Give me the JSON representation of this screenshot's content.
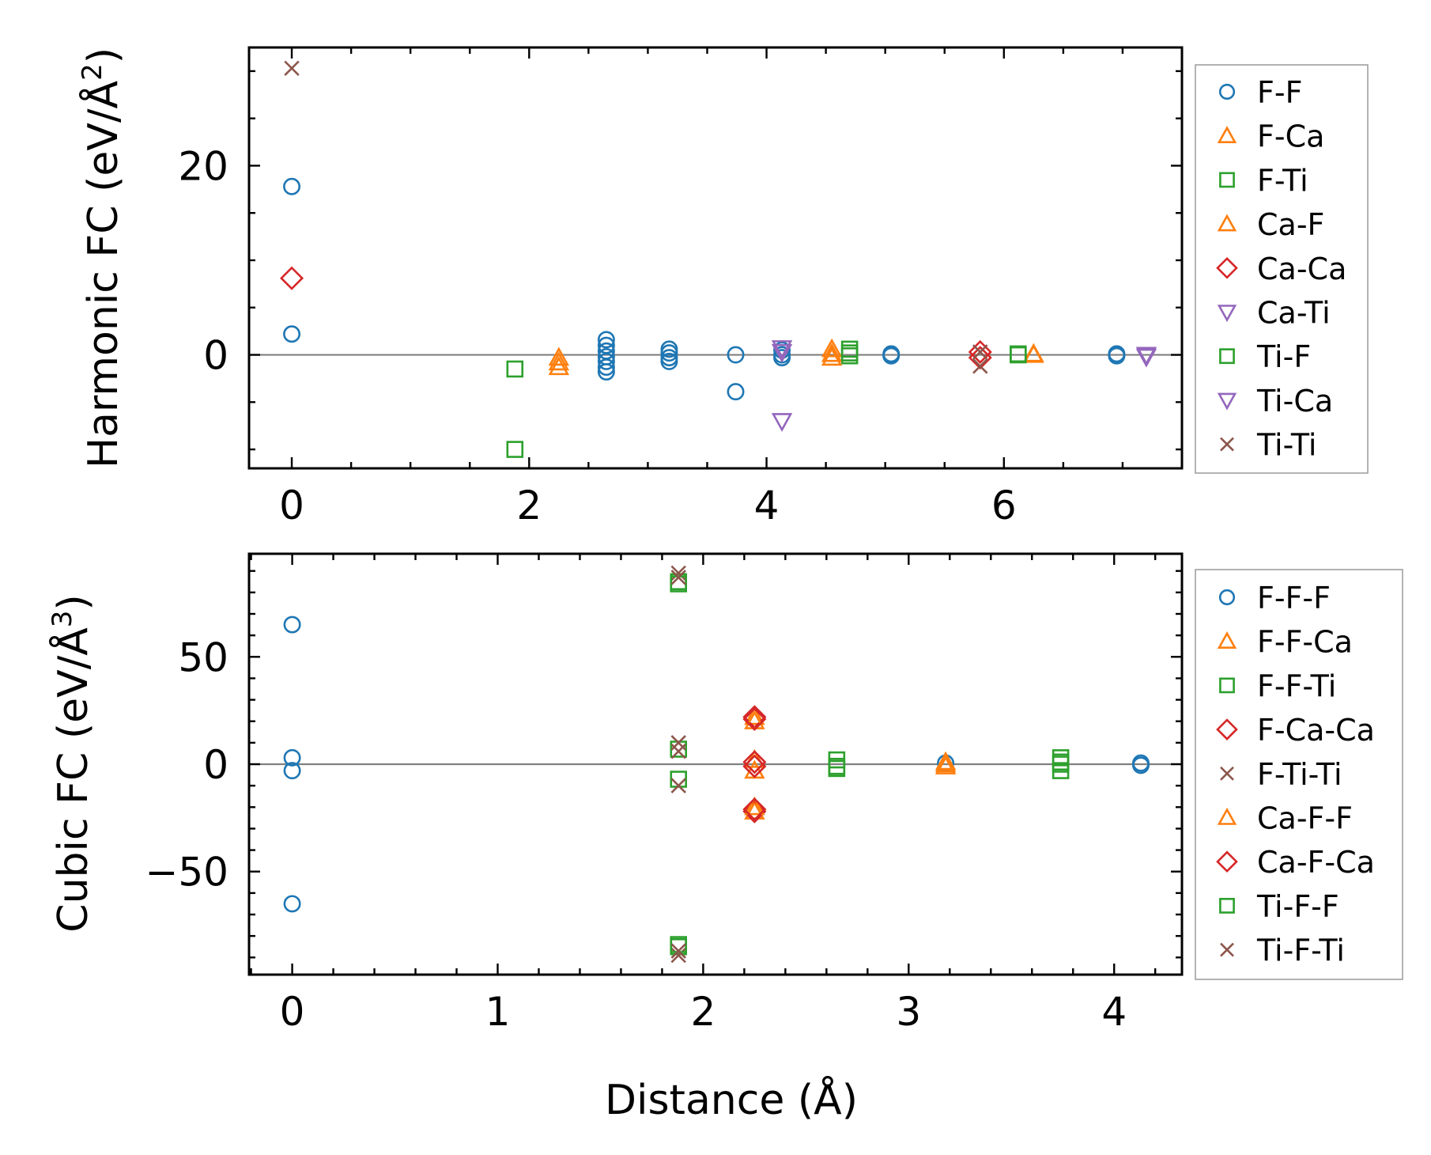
{
  "chart_data": [
    {
      "type": "scatter",
      "name": "harmonic",
      "ylabel": "Harmonic FC (eV/Å²)",
      "ylabel_parts": {
        "main": "Harmonic FC (eV/Å",
        "sup": "2",
        "close": ")"
      },
      "xlabel": "",
      "xlim": [
        -0.36,
        7.5
      ],
      "ylim": [
        -12.0,
        32.5
      ],
      "xticks": [
        0,
        2,
        4,
        6
      ],
      "xtick_labels": [
        "0",
        "2",
        "4",
        "6"
      ],
      "xminor_step": 0.5,
      "yticks": [
        0,
        20
      ],
      "ytick_labels": [
        "0",
        "20"
      ],
      "yminor_step": 5,
      "zero_line": true,
      "legend": "outside-right",
      "series": [
        {
          "name": "F-F",
          "marker": "circle",
          "color": "#1f77b4",
          "x": [
            0,
            0,
            2.65,
            2.65,
            2.65,
            2.65,
            2.65,
            2.65,
            2.65,
            3.18,
            3.18,
            3.18,
            3.18,
            3.74,
            3.74,
            4.13,
            4.13,
            4.13,
            5.05,
            5.05,
            6.95,
            6.95
          ],
          "y": [
            17.8,
            2.2,
            1.6,
            1.0,
            0.4,
            -0.2,
            -0.7,
            -1.3,
            -1.8,
            0.6,
            0.2,
            -0.3,
            -0.7,
            0,
            -3.9,
            0.5,
            0,
            -0.3,
            0.1,
            -0.1,
            0.1,
            -0.1
          ]
        },
        {
          "name": "F-Ca",
          "marker": "triangle-up",
          "color": "#ff7f0e",
          "x": [
            2.25,
            2.25,
            4.55,
            4.55,
            6.25
          ],
          "y": [
            -0.3,
            -1.3,
            0.6,
            -0.3,
            0
          ]
        },
        {
          "name": "F-Ti",
          "marker": "square",
          "color": "#2ca02c",
          "x": [
            1.88,
            1.88,
            4.7,
            4.7,
            6.12
          ],
          "y": [
            -1.5,
            -10.0,
            0.6,
            -0.1,
            0
          ]
        },
        {
          "name": "Ca-F",
          "marker": "triangle-up",
          "color": "#ff7f0e",
          "x": [
            2.25,
            4.55,
            6.25
          ],
          "y": [
            -0.8,
            0.1,
            0.1
          ]
        },
        {
          "name": "Ca-Ca",
          "marker": "diamond",
          "color": "#d62728",
          "x": [
            0,
            5.8,
            5.8
          ],
          "y": [
            8.1,
            0.3,
            -0.3
          ]
        },
        {
          "name": "Ca-Ti",
          "marker": "triangle-down",
          "color": "#9467bd",
          "x": [
            4.13,
            4.13,
            7.2
          ],
          "y": [
            0.7,
            -7.0,
            -0.2
          ]
        },
        {
          "name": "Ti-F",
          "marker": "square",
          "color": "#2ca02c",
          "x": [
            4.7,
            6.12
          ],
          "y": [
            0.2,
            0.1
          ]
        },
        {
          "name": "Ti-Ca",
          "marker": "triangle-down",
          "color": "#9467bd",
          "x": [
            4.13,
            7.2
          ],
          "y": [
            0.3,
            0
          ]
        },
        {
          "name": "Ti-Ti",
          "marker": "x",
          "color": "#8c564b",
          "x": [
            0,
            5.8,
            5.8
          ],
          "y": [
            30.3,
            0.3,
            -1.2
          ]
        }
      ]
    },
    {
      "type": "scatter",
      "name": "cubic",
      "ylabel": "Cubic FC (eV/Å³)",
      "ylabel_parts": {
        "main": "Cubic FC (eV/Å",
        "sup": "3",
        "close": ")"
      },
      "xlabel": "Distance (Å)",
      "xlim": [
        -0.21,
        4.33
      ],
      "ylim": [
        -98.0,
        98.0
      ],
      "xticks": [
        0,
        1,
        2,
        3,
        4
      ],
      "xtick_labels": [
        "0",
        "1",
        "2",
        "3",
        "4"
      ],
      "xminor_step": 0.2,
      "yticks": [
        -50,
        0,
        50
      ],
      "ytick_labels": [
        "−50",
        "0",
        "50"
      ],
      "yminor_step": 10,
      "zero_line": true,
      "legend": "outside-right",
      "series": [
        {
          "name": "F-F-F",
          "marker": "circle",
          "color": "#1f77b4",
          "x": [
            0,
            0,
            0,
            0,
            3.18,
            4.13,
            4.13
          ],
          "y": [
            65,
            3,
            -3,
            -65,
            0.5,
            0.5,
            -0.5
          ]
        },
        {
          "name": "F-F-Ca",
          "marker": "triangle-up",
          "color": "#ff7f0e",
          "x": [
            2.25,
            2.25,
            2.25,
            2.25,
            3.18,
            3.18
          ],
          "y": [
            22,
            2,
            -3,
            -22,
            1,
            -1
          ]
        },
        {
          "name": "F-F-Ti",
          "marker": "square",
          "color": "#2ca02c",
          "x": [
            1.88,
            1.88,
            1.88,
            1.88,
            2.65,
            2.65,
            3.74,
            3.74,
            3.74
          ],
          "y": [
            85,
            7,
            -7,
            -85,
            2,
            -2,
            3,
            0,
            -3
          ]
        },
        {
          "name": "F-Ca-Ca",
          "marker": "diamond",
          "color": "#d62728",
          "x": [
            2.25,
            2.25,
            2.25
          ],
          "y": [
            22,
            1,
            -22
          ]
        },
        {
          "name": "F-Ti-Ti",
          "marker": "x",
          "color": "#8c564b",
          "x": [
            1.88,
            1.88,
            1.88,
            1.88
          ],
          "y": [
            89,
            10,
            -10,
            -89
          ]
        },
        {
          "name": "Ca-F-F",
          "marker": "triangle-up",
          "color": "#ff7f0e",
          "x": [
            2.25,
            2.25,
            3.18
          ],
          "y": [
            20,
            -20,
            0
          ]
        },
        {
          "name": "Ca-F-Ca",
          "marker": "diamond",
          "color": "#d62728",
          "x": [
            2.25,
            2.25,
            2.25
          ],
          "y": [
            21,
            -1,
            -21
          ]
        },
        {
          "name": "Ti-F-F",
          "marker": "square",
          "color": "#2ca02c",
          "x": [
            1.88,
            1.88,
            2.65,
            3.74
          ],
          "y": [
            84,
            -84,
            -1,
            1
          ]
        },
        {
          "name": "Ti-F-Ti",
          "marker": "x",
          "color": "#8c564b",
          "x": [
            1.88,
            1.88,
            1.88
          ],
          "y": [
            87,
            6,
            -87
          ]
        }
      ]
    }
  ]
}
